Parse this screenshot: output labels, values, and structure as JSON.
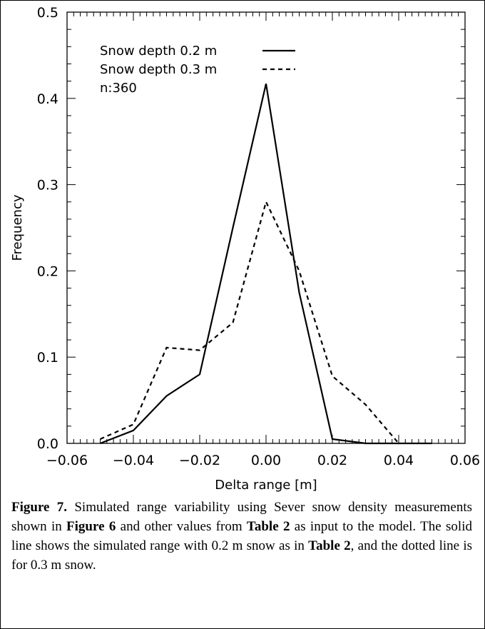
{
  "chart_data": {
    "type": "line",
    "xlabel": "Delta range [m]",
    "ylabel": "Frequency",
    "xlim": [
      -0.06,
      0.06
    ],
    "ylim": [
      0.0,
      0.5
    ],
    "xticks": [
      "−0.06",
      "−0.04",
      "−0.02",
      "0.00",
      "0.02",
      "0.04",
      "0.06"
    ],
    "yticks": [
      "0.0",
      "0.1",
      "0.2",
      "0.3",
      "0.4",
      "0.5"
    ],
    "legend_position": "top-left",
    "annotation": "n:360",
    "series": [
      {
        "name": "Snow depth 0.2 m",
        "style": "solid",
        "color": "#000000",
        "x": [
          -0.05,
          -0.04,
          -0.03,
          -0.02,
          -0.01,
          0.0,
          0.01,
          0.02,
          0.03,
          0.04,
          0.05
        ],
        "y": [
          0.0,
          0.015,
          0.055,
          0.08,
          0.25,
          0.417,
          0.175,
          0.005,
          0.0,
          0.0,
          0.0
        ]
      },
      {
        "name": "Snow depth 0.3 m",
        "style": "dashed",
        "color": "#000000",
        "x": [
          -0.05,
          -0.04,
          -0.03,
          -0.02,
          -0.01,
          0.0,
          0.01,
          0.02,
          0.03,
          0.04
        ],
        "y": [
          0.005,
          0.022,
          0.111,
          0.108,
          0.14,
          0.28,
          0.2,
          0.078,
          0.045,
          0.0
        ]
      }
    ]
  },
  "caption": {
    "label": "Figure 7.",
    "p1": " Simulated range variability using Sever snow density measurements shown in ",
    "ref1": "Figure 6",
    "p2": " and other values from ",
    "ref2": "Table 2",
    "p3": " as input to the model. The solid line shows the simulated range with 0.2 m snow as in ",
    "ref3": "Table 2",
    "p4": ", and the dotted line is for 0.3 m snow."
  }
}
